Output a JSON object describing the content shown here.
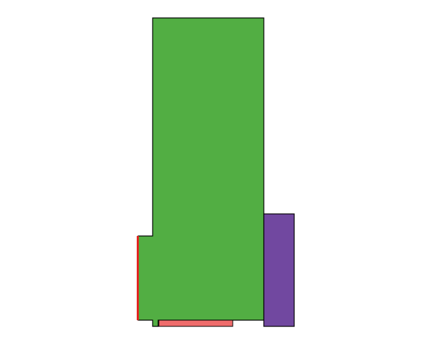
{
  "diagram": {
    "background_color": "#ffffff",
    "outline_color": "#000000",
    "shapes": [
      {
        "name": "green-main-shape",
        "color": "#52ae43"
      },
      {
        "name": "purple-rect",
        "color": "#7148a0"
      },
      {
        "name": "pink-bar",
        "color": "#ef6c6c"
      },
      {
        "name": "red-bar",
        "color": "#e42320"
      }
    ]
  }
}
